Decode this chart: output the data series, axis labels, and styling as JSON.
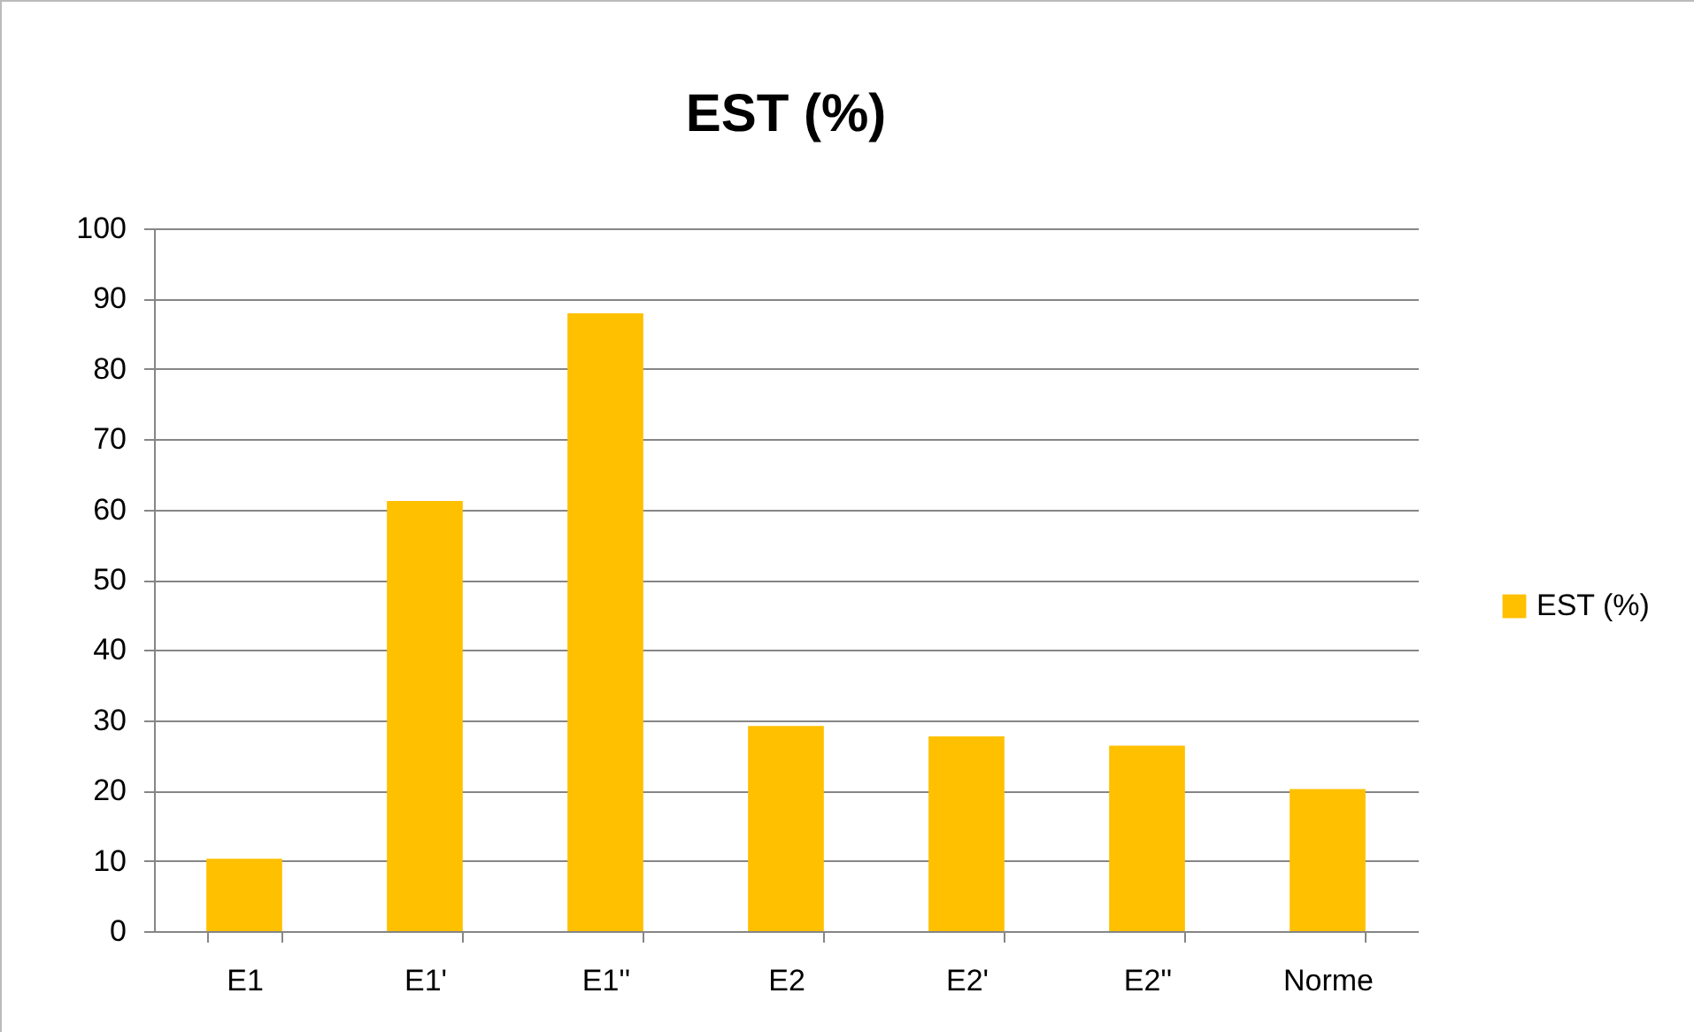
{
  "chart_data": {
    "type": "bar",
    "title": "EST (%)",
    "categories": [
      "E1",
      "E1'",
      "E1''",
      "E2",
      "E2'",
      "E2''",
      "Norme"
    ],
    "series": [
      {
        "name": "EST (%)",
        "color": "#ffc000",
        "values": [
          10.3,
          61.2,
          87.9,
          29.2,
          27.7,
          26.4,
          20.2
        ]
      }
    ],
    "ylim": [
      0,
      100
    ],
    "yticks": [
      0,
      10,
      20,
      30,
      40,
      50,
      60,
      70,
      80,
      90,
      100
    ],
    "grid": "y",
    "legend": "right"
  }
}
